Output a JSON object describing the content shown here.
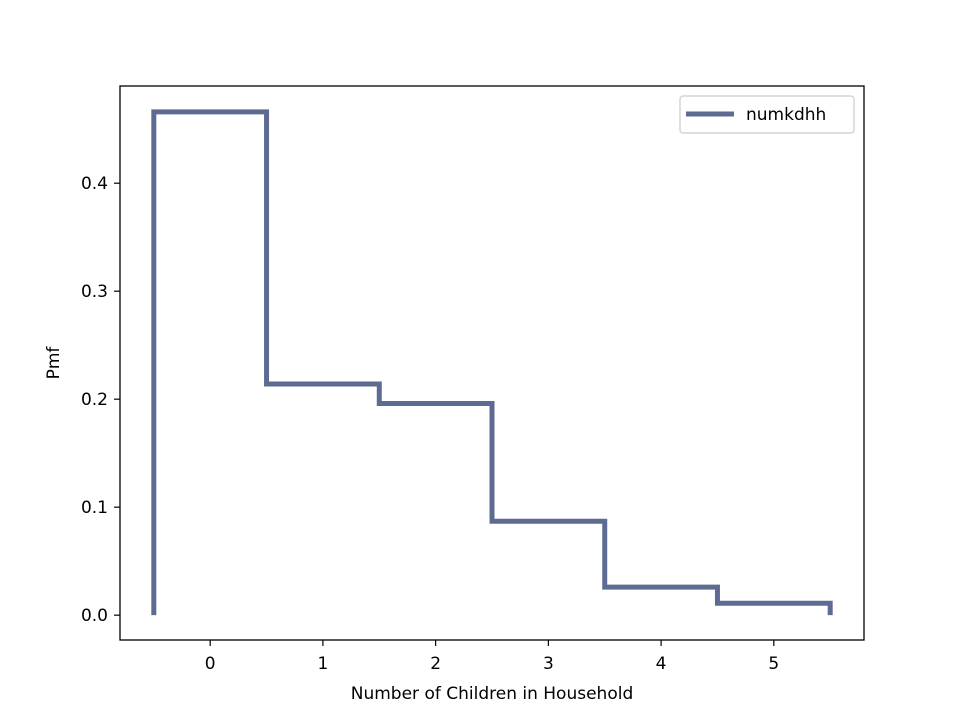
{
  "chart_data": {
    "type": "line",
    "drawstyle": "steps",
    "xlabel": "Number of Children in Household",
    "ylabel": "Pmf",
    "xlim": [
      -0.8,
      5.8
    ],
    "ylim": [
      -0.023,
      0.49
    ],
    "xticks": [
      0,
      1,
      2,
      3,
      4,
      5
    ],
    "yticks": [
      0.0,
      0.1,
      0.2,
      0.3,
      0.4
    ],
    "ytick_labels": [
      "0.0",
      "0.1",
      "0.2",
      "0.3",
      "0.4"
    ],
    "grid": false,
    "legend_position": "top-right",
    "series": [
      {
        "name": "numkdhh",
        "color": "#5d6b93",
        "x": [
          0,
          1,
          2,
          3,
          4,
          5
        ],
        "values": [
          0.466,
          0.214,
          0.196,
          0.087,
          0.026,
          0.011
        ]
      }
    ]
  }
}
